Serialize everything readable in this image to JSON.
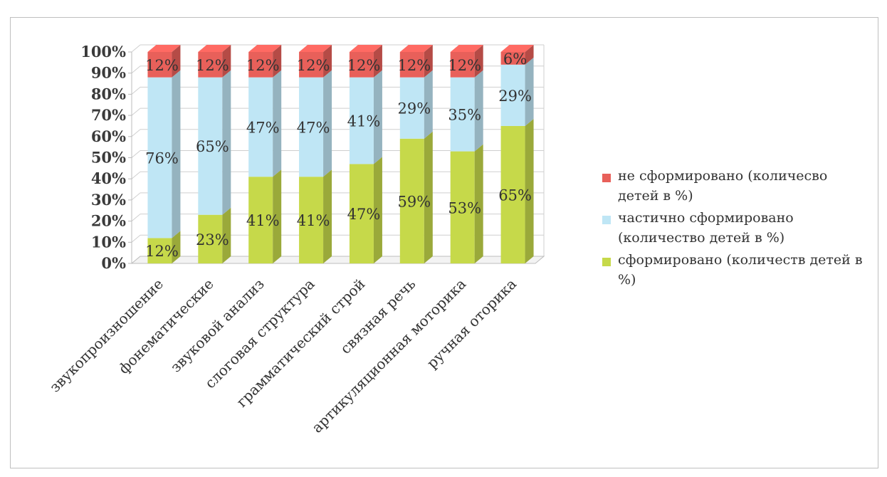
{
  "chart_data": {
    "type": "bar",
    "stacked": true,
    "categories": [
      "звукопроизношение",
      "фонематические",
      "звуковой анализ",
      "слоговая структура",
      "грамматический строй",
      "связная речь",
      "артикуляционная моторика",
      "ручная оторика"
    ],
    "series": [
      {
        "name": "сформировано (количеств детей в %)",
        "values": [
          12,
          23,
          41,
          41,
          47,
          59,
          53,
          65
        ],
        "color": "#c6d94a",
        "labels": [
          "12%",
          "23%",
          "41%",
          "41%",
          "47%",
          "59%",
          "53%",
          "65%"
        ]
      },
      {
        "name": "частично сформировано (количество детей в %)",
        "values": [
          76,
          65,
          47,
          47,
          41,
          29,
          35,
          29
        ],
        "color": "#bfe6f5",
        "labels": [
          "76%",
          "65%",
          "47%",
          "47%",
          "41%",
          "29%",
          "35%",
          "29%"
        ]
      },
      {
        "name": "не сформировано (количесво детей в %)",
        "values": [
          12,
          12,
          12,
          12,
          12,
          12,
          12,
          6
        ],
        "color": "#e8605a",
        "labels": [
          "12%",
          "12%",
          "12%",
          "12%",
          "12%",
          "12%",
          "12%",
          "6%"
        ]
      }
    ],
    "yticks": [
      "0%",
      "10%",
      "20%",
      "30%",
      "40%",
      "50%",
      "60%",
      "70%",
      "80%",
      "90%",
      "100%"
    ],
    "ylim": [
      0,
      100
    ],
    "grid": true,
    "legend_position": "right",
    "legend_order": [
      2,
      1,
      0
    ]
  }
}
